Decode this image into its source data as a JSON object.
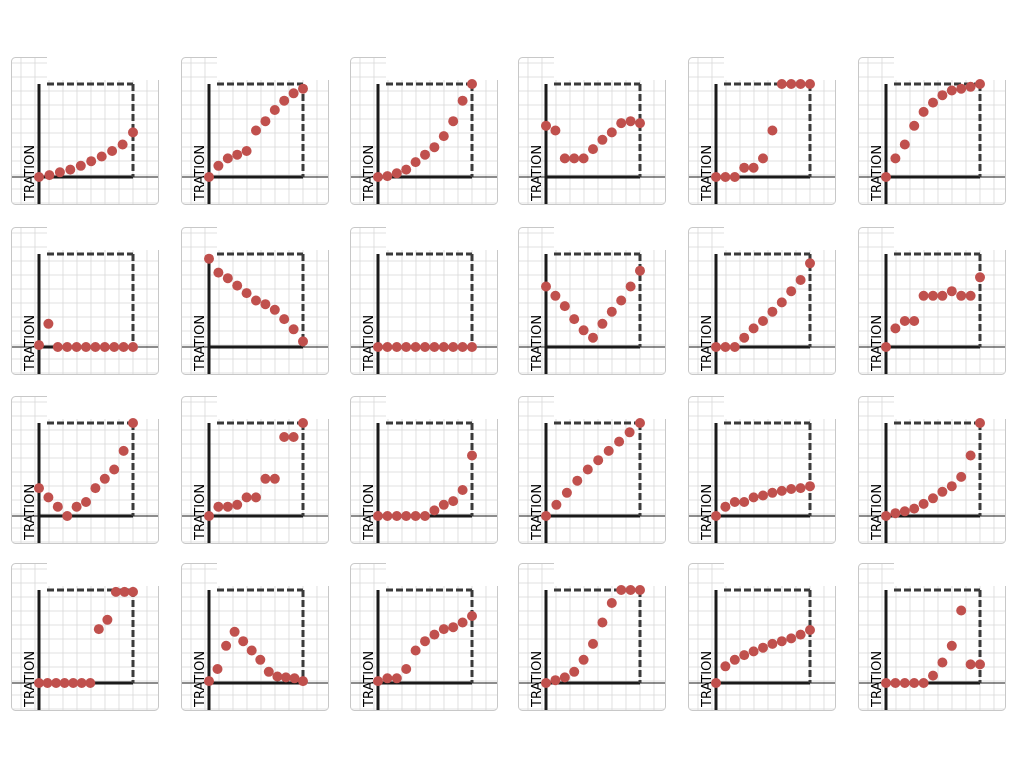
{
  "ylabel": "TRATION",
  "colors": {
    "point": "#c0504d",
    "axis": "#1a1a1a",
    "dash": "#3a3a3a",
    "grid": "#d8d8d8",
    "border": "#c8c8c8"
  },
  "chart_data": [
    {
      "type": "scatter",
      "values": [
        0,
        0.02,
        0.05,
        0.08,
        0.12,
        0.17,
        0.22,
        0.28,
        0.35,
        0.48
      ]
    },
    {
      "type": "scatter",
      "values": [
        0,
        0.12,
        0.2,
        0.24,
        0.28,
        0.5,
        0.6,
        0.72,
        0.82,
        0.9,
        0.95
      ]
    },
    {
      "type": "scatter",
      "values": [
        0,
        0.01,
        0.04,
        0.08,
        0.16,
        0.24,
        0.32,
        0.44,
        0.6,
        0.82,
        1
      ]
    },
    {
      "type": "scatter",
      "values": [
        0.55,
        0.5,
        0.2,
        0.2,
        0.2,
        0.3,
        0.4,
        0.48,
        0.58,
        0.6,
        0.58
      ]
    },
    {
      "type": "scatter",
      "values": [
        0,
        0,
        0,
        0.1,
        0.1,
        0.2,
        0.5,
        1,
        1,
        1,
        1
      ]
    },
    {
      "type": "scatter",
      "values": [
        0,
        0.2,
        0.35,
        0.55,
        0.7,
        0.8,
        0.88,
        0.93,
        0.95,
        0.97,
        1
      ]
    },
    {
      "type": "scatter",
      "values": [
        0.02,
        0.25,
        0,
        0,
        0,
        0,
        0,
        0,
        0,
        0,
        0
      ]
    },
    {
      "type": "scatter",
      "values": [
        0.95,
        0.8,
        0.74,
        0.66,
        0.58,
        0.5,
        0.46,
        0.4,
        0.3,
        0.19,
        0.06
      ]
    },
    {
      "type": "scatter",
      "values": [
        0,
        0,
        0,
        0,
        0,
        0,
        0,
        0,
        0,
        0,
        0
      ]
    },
    {
      "type": "scatter",
      "values": [
        0.65,
        0.55,
        0.44,
        0.3,
        0.18,
        0.1,
        0.25,
        0.38,
        0.5,
        0.65,
        0.82
      ]
    },
    {
      "type": "scatter",
      "values": [
        0,
        0,
        0,
        0.1,
        0.2,
        0.28,
        0.38,
        0.48,
        0.6,
        0.72,
        0.9
      ]
    },
    {
      "type": "scatter",
      "values": [
        0,
        0.2,
        0.28,
        0.28,
        0.55,
        0.55,
        0.55,
        0.6,
        0.55,
        0.55,
        0.75
      ]
    },
    {
      "type": "scatter",
      "values": [
        0.3,
        0.2,
        0.1,
        0,
        0.1,
        0.15,
        0.3,
        0.4,
        0.5,
        0.7,
        1
      ]
    },
    {
      "type": "scatter",
      "values": [
        0,
        0.1,
        0.1,
        0.12,
        0.2,
        0.2,
        0.4,
        0.4,
        0.85,
        0.85,
        1
      ]
    },
    {
      "type": "scatter",
      "values": [
        0,
        0,
        0,
        0,
        0,
        0,
        0.06,
        0.12,
        0.16,
        0.28,
        0.65
      ]
    },
    {
      "type": "scatter",
      "values": [
        0,
        0.12,
        0.25,
        0.38,
        0.5,
        0.6,
        0.7,
        0.8,
        0.9,
        1
      ]
    },
    {
      "type": "scatter",
      "values": [
        0,
        0.1,
        0.15,
        0.15,
        0.2,
        0.22,
        0.25,
        0.27,
        0.29,
        0.3,
        0.32
      ]
    },
    {
      "type": "scatter",
      "values": [
        0,
        0.03,
        0.05,
        0.08,
        0.13,
        0.19,
        0.26,
        0.32,
        0.42,
        0.65,
        1
      ]
    },
    {
      "type": "scatter",
      "values": [
        0,
        0,
        0,
        0,
        0,
        0,
        0,
        0.58,
        0.68,
        0.98,
        0.98,
        0.98
      ]
    },
    {
      "type": "scatter",
      "values": [
        0.02,
        0.15,
        0.4,
        0.55,
        0.45,
        0.35,
        0.25,
        0.12,
        0.07,
        0.06,
        0.05,
        0.02
      ]
    },
    {
      "type": "scatter",
      "values": [
        0.02,
        0.05,
        0.05,
        0.15,
        0.35,
        0.45,
        0.52,
        0.58,
        0.6,
        0.65,
        0.72
      ]
    },
    {
      "type": "scatter",
      "values": [
        0,
        0.03,
        0.06,
        0.12,
        0.25,
        0.42,
        0.65,
        0.86,
        1,
        1,
        1
      ]
    },
    {
      "type": "scatter",
      "values": [
        0,
        0.18,
        0.25,
        0.3,
        0.34,
        0.38,
        0.42,
        0.45,
        0.48,
        0.52,
        0.57
      ]
    },
    {
      "type": "scatter",
      "values": [
        0,
        0,
        0,
        0,
        0,
        0.08,
        0.22,
        0.4,
        0.78,
        0.2,
        0.2
      ]
    }
  ]
}
